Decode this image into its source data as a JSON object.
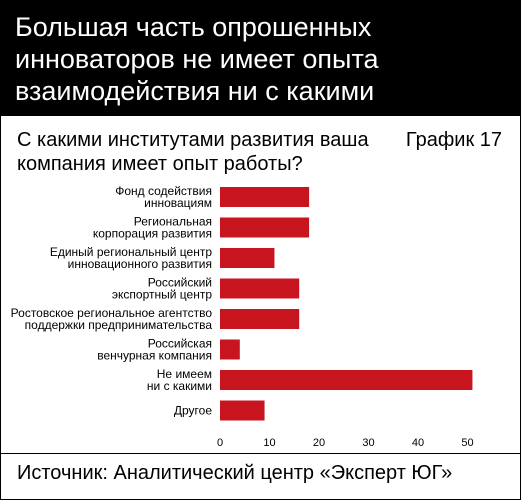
{
  "header": {
    "title": "Большая часть опрошенных инноваторов не имеет опыта взаимодействия ни с какими институтами развития"
  },
  "question": "С какими институтами развития ваша компания имеет опыт работы?",
  "graph_label": "График 17",
  "source": "Источник: Аналитический центр «Эксперт ЮГ»",
  "colors": {
    "bar": "#c8141e",
    "header_bg": "#000000"
  },
  "chart_data": {
    "type": "bar",
    "orientation": "horizontal",
    "categories": [
      [
        "Фонд содействия",
        "инновациям"
      ],
      [
        "Региональная",
        "корпорация развития"
      ],
      [
        "Единый региональный центр",
        "инновационного развития"
      ],
      [
        "Российский",
        "экспортный центр"
      ],
      [
        "Ростовское региональное агентство",
        "поддержки предпринимательства"
      ],
      [
        "Российская",
        "венчурная компания"
      ],
      [
        "Не имеем",
        "ни с какими"
      ],
      [
        "Другое"
      ]
    ],
    "values": [
      18,
      18,
      11,
      16,
      16,
      4,
      51,
      9
    ],
    "xlim": [
      0,
      55
    ],
    "xticks": [
      0,
      10,
      20,
      30,
      40,
      50
    ],
    "grid": false,
    "legend": "none"
  }
}
